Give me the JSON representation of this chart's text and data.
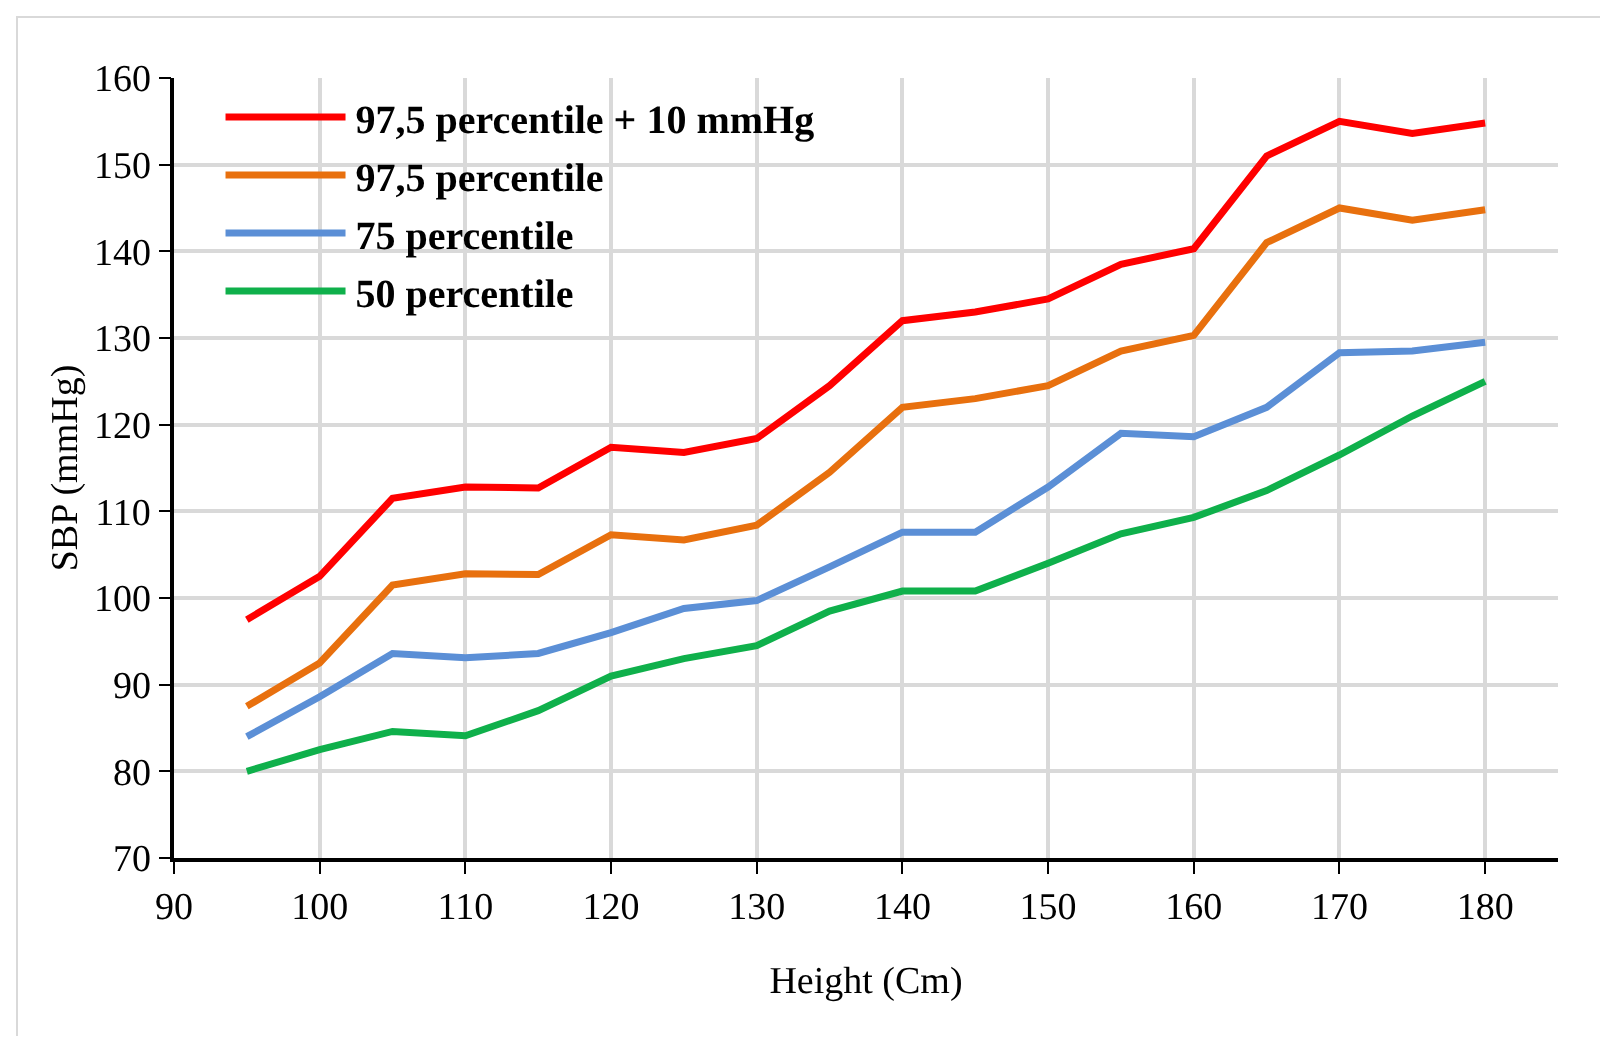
{
  "chart_data": {
    "type": "line",
    "xlabel": "Height (Cm)",
    "ylabel": "SBP (mmHg)",
    "x": [
      95,
      100,
      105,
      110,
      115,
      120,
      125,
      130,
      135,
      140,
      145,
      150,
      155,
      160,
      165,
      170,
      175,
      180
    ],
    "series": [
      {
        "name": "97,5 percentile + 10 mmHg",
        "color": "#ff0000",
        "values": [
          97.5,
          102.5,
          111.5,
          112.8,
          112.7,
          117.4,
          116.8,
          118.4,
          124.5,
          132,
          133,
          134.5,
          138.5,
          140.3,
          151,
          155,
          153.6,
          154.8
        ]
      },
      {
        "name": "97,5 percentile",
        "color": "#e8700e",
        "values": [
          87.5,
          92.5,
          101.5,
          102.8,
          102.7,
          107.3,
          106.7,
          108.4,
          114.5,
          122,
          123,
          124.5,
          128.5,
          130.3,
          141,
          145,
          143.6,
          144.8
        ]
      },
      {
        "name": "75 percentile",
        "color": "#5b8fd6",
        "values": [
          84,
          88.6,
          93.6,
          93.1,
          93.6,
          96,
          98.8,
          99.7,
          103.6,
          107.6,
          107.6,
          112.8,
          119,
          118.6,
          122,
          128.3,
          128.5,
          129.5
        ]
      },
      {
        "name": "50 percentile",
        "color": "#0fb04b",
        "values": [
          80,
          82.5,
          84.6,
          84.1,
          87,
          91,
          93,
          94.5,
          98.5,
          100.8,
          100.8,
          104,
          107.4,
          109.3,
          112.4,
          116.5,
          121,
          125
        ]
      }
    ],
    "xlim": [
      90,
      185
    ],
    "xticks": [
      90,
      100,
      110,
      120,
      130,
      140,
      150,
      160,
      170,
      180
    ],
    "ylim": [
      70,
      160
    ],
    "yticks": [
      70,
      80,
      90,
      100,
      110,
      120,
      130,
      140,
      150,
      160
    ],
    "grid": true,
    "legend": "top left",
    "marker": "none",
    "line_style": "solid"
  }
}
